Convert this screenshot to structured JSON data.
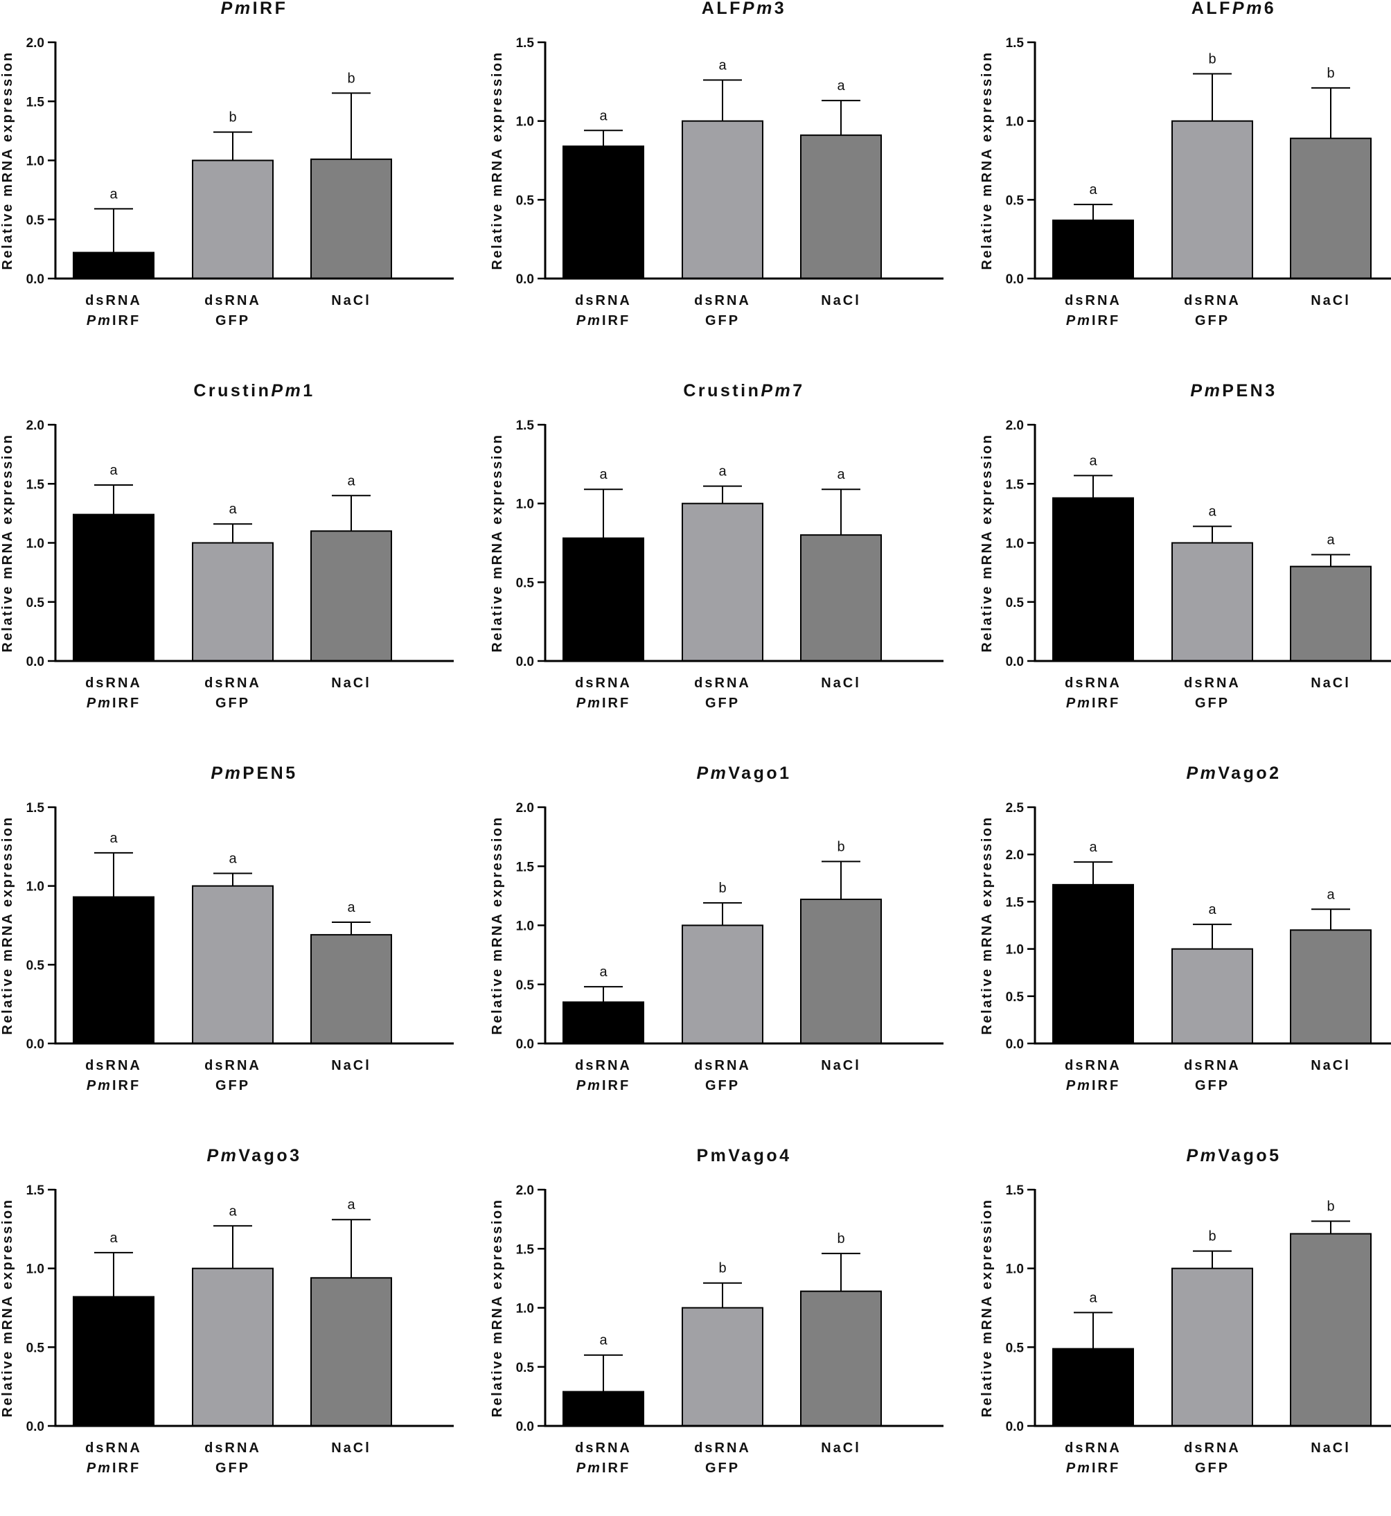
{
  "colors": {
    "bar_dsRNA_PmIRF": "#000000",
    "bar_dsRNA_GFP": "#a1a1a5",
    "bar_NaCl": "#808080",
    "axis": "#000000"
  },
  "shared": {
    "ylabel": "Relative mRNA expression",
    "categories": [
      {
        "line1": "dsRNA",
        "line2_italic": "Pm",
        "line2": "IRF"
      },
      {
        "line1": "dsRNA",
        "line2_italic": "",
        "line2": "GFP"
      },
      {
        "line1": "NaCl",
        "line2_italic": "",
        "line2": ""
      }
    ]
  },
  "chart_data": [
    {
      "type": "bar",
      "title": [
        {
          "t": "Pm",
          "i": true
        },
        {
          "t": "IRF",
          "i": false
        }
      ],
      "ylabel": "Relative mRNA expression",
      "categories": [
        "dsRNA PmIRF",
        "dsRNA GFP",
        "NaCl"
      ],
      "ylim": [
        0,
        2.0
      ],
      "ticks": [
        "0.0",
        "0.5",
        "1.0",
        "1.5",
        "2.0"
      ],
      "values": [
        0.22,
        1.0,
        1.01
      ],
      "errors": [
        0.37,
        0.24,
        0.56
      ],
      "labels": [
        "a",
        "b",
        "b"
      ]
    },
    {
      "type": "bar",
      "title": [
        {
          "t": "ALF",
          "i": false
        },
        {
          "t": "Pm",
          "i": true
        },
        {
          "t": "3",
          "i": false
        }
      ],
      "ylabel": "Relative mRNA expression",
      "categories": [
        "dsRNA PmIRF",
        "dsRNA GFP",
        "NaCl"
      ],
      "ylim": [
        0,
        1.5
      ],
      "ticks": [
        "0.0",
        "0.5",
        "1.0",
        "1.5"
      ],
      "values": [
        0.84,
        1.0,
        0.91
      ],
      "errors": [
        0.1,
        0.26,
        0.22
      ],
      "labels": [
        "a",
        "a",
        "a"
      ]
    },
    {
      "type": "bar",
      "title": [
        {
          "t": "ALF",
          "i": false
        },
        {
          "t": "Pm",
          "i": true
        },
        {
          "t": "6",
          "i": false
        }
      ],
      "ylabel": "Relative mRNA expression",
      "categories": [
        "dsRNA PmIRF",
        "dsRNA GFP",
        "NaCl"
      ],
      "ylim": [
        0,
        1.5
      ],
      "ticks": [
        "0.0",
        "0.5",
        "1.0",
        "1.5"
      ],
      "values": [
        0.37,
        1.0,
        0.89
      ],
      "errors": [
        0.1,
        0.3,
        0.32
      ],
      "labels": [
        "a",
        "b",
        "b"
      ]
    },
    {
      "type": "bar",
      "title": [
        {
          "t": "Crustin",
          "i": false
        },
        {
          "t": "Pm",
          "i": true
        },
        {
          "t": "1",
          "i": false
        }
      ],
      "ylabel": "Relative mRNA expression",
      "categories": [
        "dsRNA PmIRF",
        "dsRNA GFP",
        "NaCl"
      ],
      "ylim": [
        0,
        2.0
      ],
      "ticks": [
        "0.0",
        "0.5",
        "1.0",
        "1.5",
        "2.0"
      ],
      "values": [
        1.24,
        1.0,
        1.1
      ],
      "errors": [
        0.25,
        0.16,
        0.3
      ],
      "labels": [
        "a",
        "a",
        "a"
      ]
    },
    {
      "type": "bar",
      "title": [
        {
          "t": "Crustin",
          "i": false
        },
        {
          "t": "Pm",
          "i": true
        },
        {
          "t": "7",
          "i": false
        }
      ],
      "ylabel": "Relative mRNA expression",
      "categories": [
        "dsRNA PmIRF",
        "dsRNA GFP",
        "NaCl"
      ],
      "ylim": [
        0,
        1.5
      ],
      "ticks": [
        "0.0",
        "0.5",
        "1.0",
        "1.5"
      ],
      "values": [
        0.78,
        1.0,
        0.8
      ],
      "errors": [
        0.31,
        0.11,
        0.29
      ],
      "labels": [
        "a",
        "a",
        "a"
      ]
    },
    {
      "type": "bar",
      "title": [
        {
          "t": "Pm",
          "i": true
        },
        {
          "t": "PEN3",
          "i": false
        }
      ],
      "ylabel": "Relative mRNA expression",
      "categories": [
        "dsRNA PmIRF",
        "dsRNA GFP",
        "NaCl"
      ],
      "ylim": [
        0,
        2.0
      ],
      "ticks": [
        "0.0",
        "0.5",
        "1.0",
        "1.5",
        "2.0"
      ],
      "values": [
        1.38,
        1.0,
        0.8
      ],
      "errors": [
        0.19,
        0.14,
        0.1
      ],
      "labels": [
        "a",
        "a",
        "a"
      ]
    },
    {
      "type": "bar",
      "title": [
        {
          "t": "Pm",
          "i": true
        },
        {
          "t": "PEN5",
          "i": false
        }
      ],
      "ylabel": "Relative mRNA expression",
      "categories": [
        "dsRNA PmIRF",
        "dsRNA GFP",
        "NaCl"
      ],
      "ylim": [
        0,
        1.5
      ],
      "ticks": [
        "0.0",
        "0.5",
        "1.0",
        "1.5"
      ],
      "values": [
        0.93,
        1.0,
        0.69
      ],
      "errors": [
        0.28,
        0.08,
        0.08
      ],
      "labels": [
        "a",
        "a",
        "a"
      ]
    },
    {
      "type": "bar",
      "title": [
        {
          "t": "Pm",
          "i": true
        },
        {
          "t": "Vago1",
          "i": false
        }
      ],
      "ylabel": "Relative mRNA expression",
      "categories": [
        "dsRNA PmIRF",
        "dsRNA GFP",
        "NaCl"
      ],
      "ylim": [
        0,
        2.0
      ],
      "ticks": [
        "0.0",
        "0.5",
        "1.0",
        "1.5",
        "2.0"
      ],
      "values": [
        0.35,
        1.0,
        1.22
      ],
      "errors": [
        0.13,
        0.19,
        0.32
      ],
      "labels": [
        "a",
        "b",
        "b"
      ]
    },
    {
      "type": "bar",
      "title": [
        {
          "t": "Pm",
          "i": true
        },
        {
          "t": "Vago2",
          "i": false
        }
      ],
      "ylabel": "Relative mRNA expression",
      "categories": [
        "dsRNA PmIRF",
        "dsRNA GFP",
        "NaCl"
      ],
      "ylim": [
        0,
        2.5
      ],
      "ticks": [
        "0.0",
        "0.5",
        "1.0",
        "1.5",
        "2.0",
        "2.5"
      ],
      "values": [
        1.68,
        1.0,
        1.2
      ],
      "errors": [
        0.24,
        0.26,
        0.22
      ],
      "labels": [
        "a",
        "a",
        "a"
      ]
    },
    {
      "type": "bar",
      "title": [
        {
          "t": "Pm",
          "i": true
        },
        {
          "t": "Vago3",
          "i": false
        }
      ],
      "ylabel": "Relative mRNA expression",
      "categories": [
        "dsRNA PmIRF",
        "dsRNA GFP",
        "NaCl"
      ],
      "ylim": [
        0,
        1.5
      ],
      "ticks": [
        "0.0",
        "0.5",
        "1.0",
        "1.5"
      ],
      "values": [
        0.82,
        1.0,
        0.94
      ],
      "errors": [
        0.28,
        0.27,
        0.37
      ],
      "labels": [
        "a",
        "a",
        "a"
      ]
    },
    {
      "type": "bar",
      "title": [
        {
          "t": "PmVago4",
          "i": false
        }
      ],
      "ylabel": "Relative mRNA expression",
      "categories": [
        "dsRNA PmIRF",
        "dsRNA GFP",
        "NaCl"
      ],
      "ylim": [
        0,
        2.0
      ],
      "ticks": [
        "0.0",
        "0.5",
        "1.0",
        "1.5",
        "2.0"
      ],
      "values": [
        0.29,
        1.0,
        1.14
      ],
      "errors": [
        0.31,
        0.21,
        0.32
      ],
      "labels": [
        "a",
        "b",
        "b"
      ]
    },
    {
      "type": "bar",
      "title": [
        {
          "t": "Pm",
          "i": true
        },
        {
          "t": "Vago5",
          "i": false
        }
      ],
      "ylabel": "Relative mRNA expression",
      "categories": [
        "dsRNA PmIRF",
        "dsRNA GFP",
        "NaCl"
      ],
      "ylim": [
        0,
        1.5
      ],
      "ticks": [
        "0.0",
        "0.5",
        "1.0",
        "1.5"
      ],
      "values": [
        0.49,
        1.0,
        1.22
      ],
      "errors": [
        0.23,
        0.11,
        0.08
      ],
      "labels": [
        "a",
        "b",
        "b"
      ]
    }
  ]
}
